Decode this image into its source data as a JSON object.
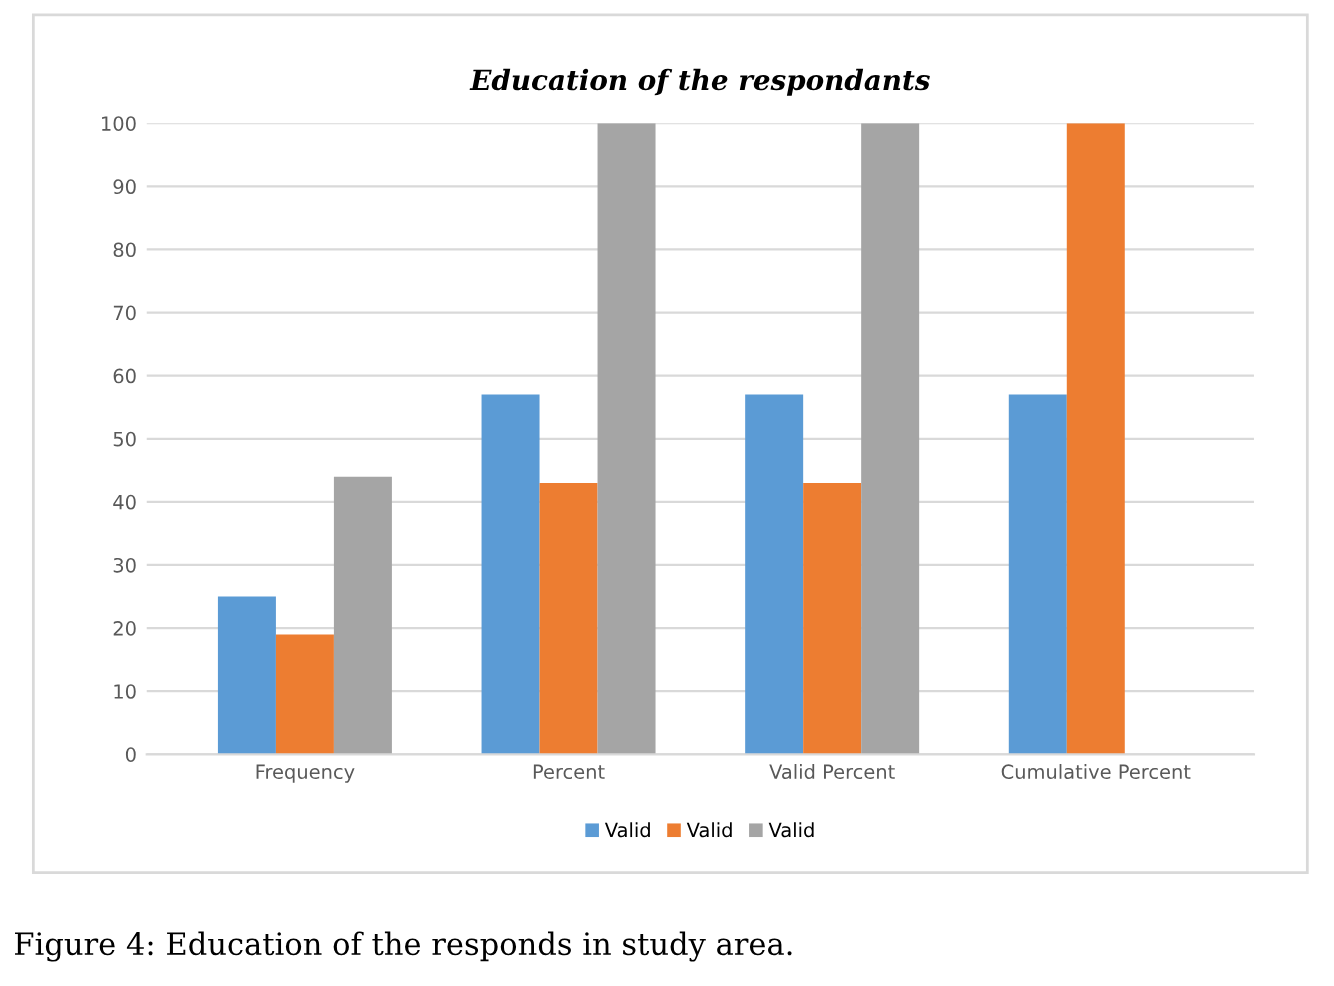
{
  "chart_data": {
    "type": "bar",
    "title": "Education of the respondants",
    "categories": [
      "Frequency",
      "Percent",
      "Valid Percent",
      "Cumulative Percent"
    ],
    "series": [
      {
        "name": "Valid",
        "color": "#5b9bd5",
        "values": [
          25,
          57,
          57,
          57
        ]
      },
      {
        "name": "Valid",
        "color": "#ed7d31",
        "values": [
          19,
          43,
          43,
          100
        ]
      },
      {
        "name": "Valid",
        "color": "#a5a5a5",
        "values": [
          44,
          100,
          100,
          null
        ]
      }
    ],
    "ylim": [
      0,
      100
    ],
    "yticks": [
      0,
      10,
      20,
      30,
      40,
      50,
      60,
      70,
      80,
      90,
      100
    ],
    "grid": "y",
    "legend": "bottom",
    "annotations": [
      "Figure 4: Education of the responds in study area."
    ]
  }
}
